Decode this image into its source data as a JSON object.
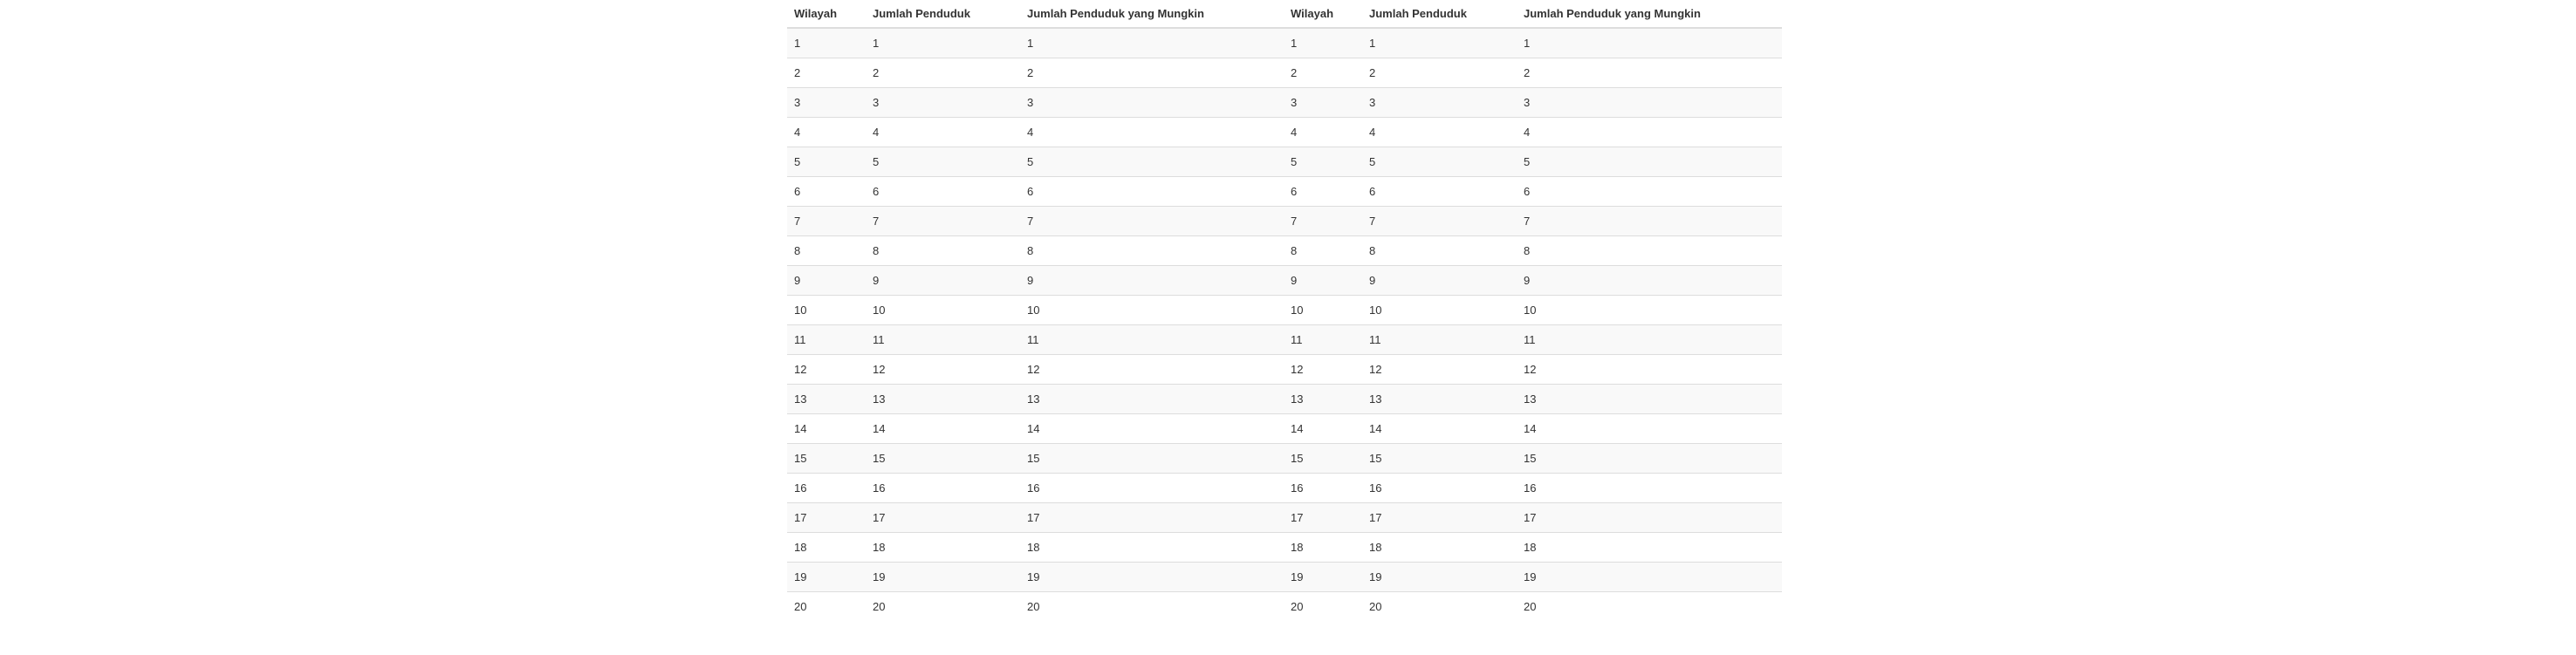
{
  "table": {
    "headers": [
      "Wilayah",
      "Jumlah Penduduk",
      "Jumlah Penduduk yang Mungkin",
      "Wilayah",
      "Jumlah Penduduk",
      "Jumlah Penduduk yang Mungkin"
    ],
    "rows": [
      [
        "1",
        "1",
        "1",
        "1",
        "1",
        "1"
      ],
      [
        "2",
        "2",
        "2",
        "2",
        "2",
        "2"
      ],
      [
        "3",
        "3",
        "3",
        "3",
        "3",
        "3"
      ],
      [
        "4",
        "4",
        "4",
        "4",
        "4",
        "4"
      ],
      [
        "5",
        "5",
        "5",
        "5",
        "5",
        "5"
      ],
      [
        "6",
        "6",
        "6",
        "6",
        "6",
        "6"
      ],
      [
        "7",
        "7",
        "7",
        "7",
        "7",
        "7"
      ],
      [
        "8",
        "8",
        "8",
        "8",
        "8",
        "8"
      ],
      [
        "9",
        "9",
        "9",
        "9",
        "9",
        "9"
      ],
      [
        "10",
        "10",
        "10",
        "10",
        "10",
        "10"
      ],
      [
        "11",
        "11",
        "11",
        "11",
        "11",
        "11"
      ],
      [
        "12",
        "12",
        "12",
        "12",
        "12",
        "12"
      ],
      [
        "13",
        "13",
        "13",
        "13",
        "13",
        "13"
      ],
      [
        "14",
        "14",
        "14",
        "14",
        "14",
        "14"
      ],
      [
        "15",
        "15",
        "15",
        "15",
        "15",
        "15"
      ],
      [
        "16",
        "16",
        "16",
        "16",
        "16",
        "16"
      ],
      [
        "17",
        "17",
        "17",
        "17",
        "17",
        "17"
      ],
      [
        "18",
        "18",
        "18",
        "18",
        "18",
        "18"
      ],
      [
        "19",
        "19",
        "19",
        "19",
        "19",
        "19"
      ],
      [
        "20",
        "20",
        "20",
        "20",
        "20",
        "20"
      ]
    ]
  }
}
